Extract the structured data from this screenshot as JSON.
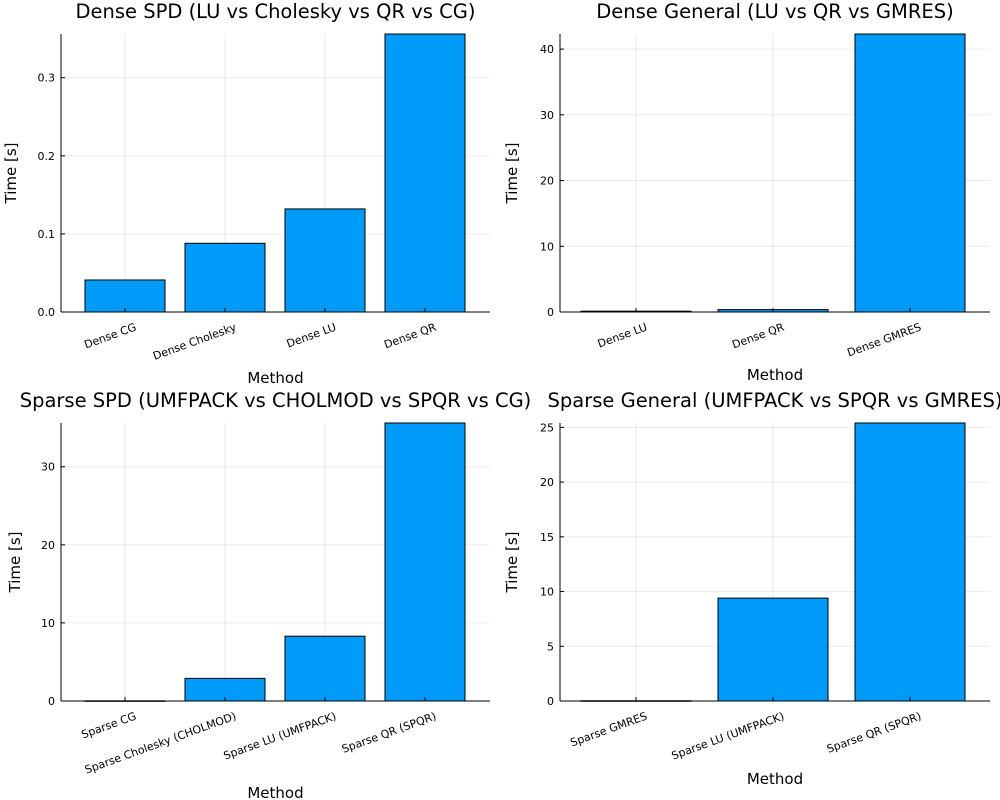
{
  "colors": {
    "bar": "#009af9"
  },
  "chart_data": [
    {
      "type": "bar",
      "title": "Dense SPD (LU vs Cholesky vs QR vs CG)",
      "xlabel": "Method",
      "ylabel": "Time [s]",
      "categories": [
        "Dense CG",
        "Dense Cholesky",
        "Dense LU",
        "Dense QR"
      ],
      "values": [
        0.041,
        0.088,
        0.132,
        0.356
      ],
      "ylim": [
        0,
        0.356
      ],
      "yticks": [
        0.0,
        0.1,
        0.2,
        0.3
      ],
      "ytick_labels": [
        "0.0",
        "0.1",
        "0.2",
        "0.3"
      ],
      "grid": true,
      "legend": "none"
    },
    {
      "type": "bar",
      "title": "Dense General (LU vs QR vs GMRES)",
      "xlabel": "Method",
      "ylabel": "Time [s]",
      "categories": [
        "Dense LU",
        "Dense QR",
        "Dense GMRES"
      ],
      "values": [
        0.13,
        0.36,
        42.3
      ],
      "ylim": [
        0,
        42.3
      ],
      "yticks": [
        0,
        10,
        20,
        30,
        40
      ],
      "ytick_labels": [
        "0",
        "10",
        "20",
        "30",
        "40"
      ],
      "grid": true,
      "legend": "none"
    },
    {
      "type": "bar",
      "title": "Sparse SPD (UMFPACK vs CHOLMOD vs SPQR vs CG)",
      "xlabel": "Method",
      "ylabel": "Time [s]",
      "categories": [
        "Sparse CG",
        "Sparse Cholesky (CHOLMOD)",
        "Sparse LU (UMFPACK)",
        "Sparse QR (SPQR)"
      ],
      "values": [
        0.02,
        2.9,
        8.3,
        35.6
      ],
      "ylim": [
        0,
        35.6
      ],
      "yticks": [
        0,
        10,
        20,
        30
      ],
      "ytick_labels": [
        "0",
        "10",
        "20",
        "30"
      ],
      "grid": true,
      "legend": "none"
    },
    {
      "type": "bar",
      "title": "Sparse General (UMFPACK vs SPQR vs GMRES)",
      "xlabel": "Method",
      "ylabel": "Time [s]",
      "categories": [
        "Sparse GMRES",
        "Sparse LU (UMFPACK)",
        "Sparse QR (SPQR)"
      ],
      "values": [
        0.02,
        9.4,
        25.4
      ],
      "ylim": [
        0,
        25.4
      ],
      "yticks": [
        0,
        5,
        10,
        15,
        20,
        25
      ],
      "ytick_labels": [
        "0",
        "5",
        "10",
        "15",
        "20",
        "25"
      ],
      "grid": true,
      "legend": "none"
    }
  ]
}
